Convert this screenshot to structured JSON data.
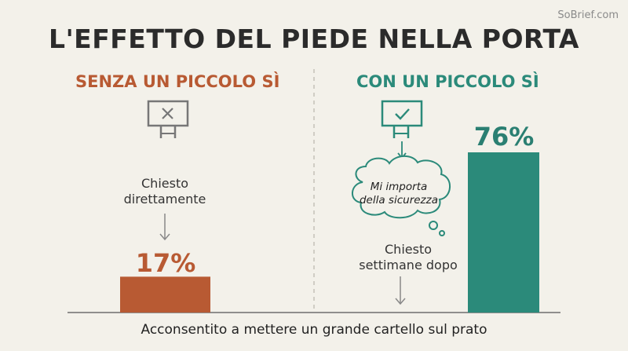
{
  "watermark": "SoBrief.com",
  "title": "L'EFFETTO DEL PIEDE NELLA PORTA",
  "left_panel": {
    "heading": "SENZA UN PICCOLO SÌ",
    "caption_line1": "Chiesto",
    "caption_line2": "direttamente",
    "value_label": "17%"
  },
  "right_panel": {
    "heading": "CON UN PICCOLO SÌ",
    "thought_line1": "Mi importa",
    "thought_line2": "della sicurezza",
    "caption_line1": "Chiesto",
    "caption_line2": "settimane dopo",
    "value_label": "76%"
  },
  "footer": "Acconsentito a mettere un grande cartello sul prato",
  "colors": {
    "left_accent": "#b85a33",
    "right_accent": "#2b8a7a",
    "background": "#f3f1ea"
  },
  "icons": {
    "left": "sign-with-x-icon",
    "right": "sign-with-check-icon",
    "thought": "thought-cloud-icon"
  },
  "chart_data": {
    "type": "bar",
    "categories": [
      "SENZA UN PICCOLO SÌ",
      "CON UN PICCOLO SÌ"
    ],
    "values": [
      17,
      76
    ],
    "value_labels": [
      "17%",
      "76%"
    ],
    "title": "L'EFFETTO DEL PIEDE NELLA PORTA",
    "xlabel": "Acconsentito a mettere un grande cartello sul prato",
    "ylabel": "",
    "ylim": [
      0,
      100
    ],
    "grid": false
  }
}
